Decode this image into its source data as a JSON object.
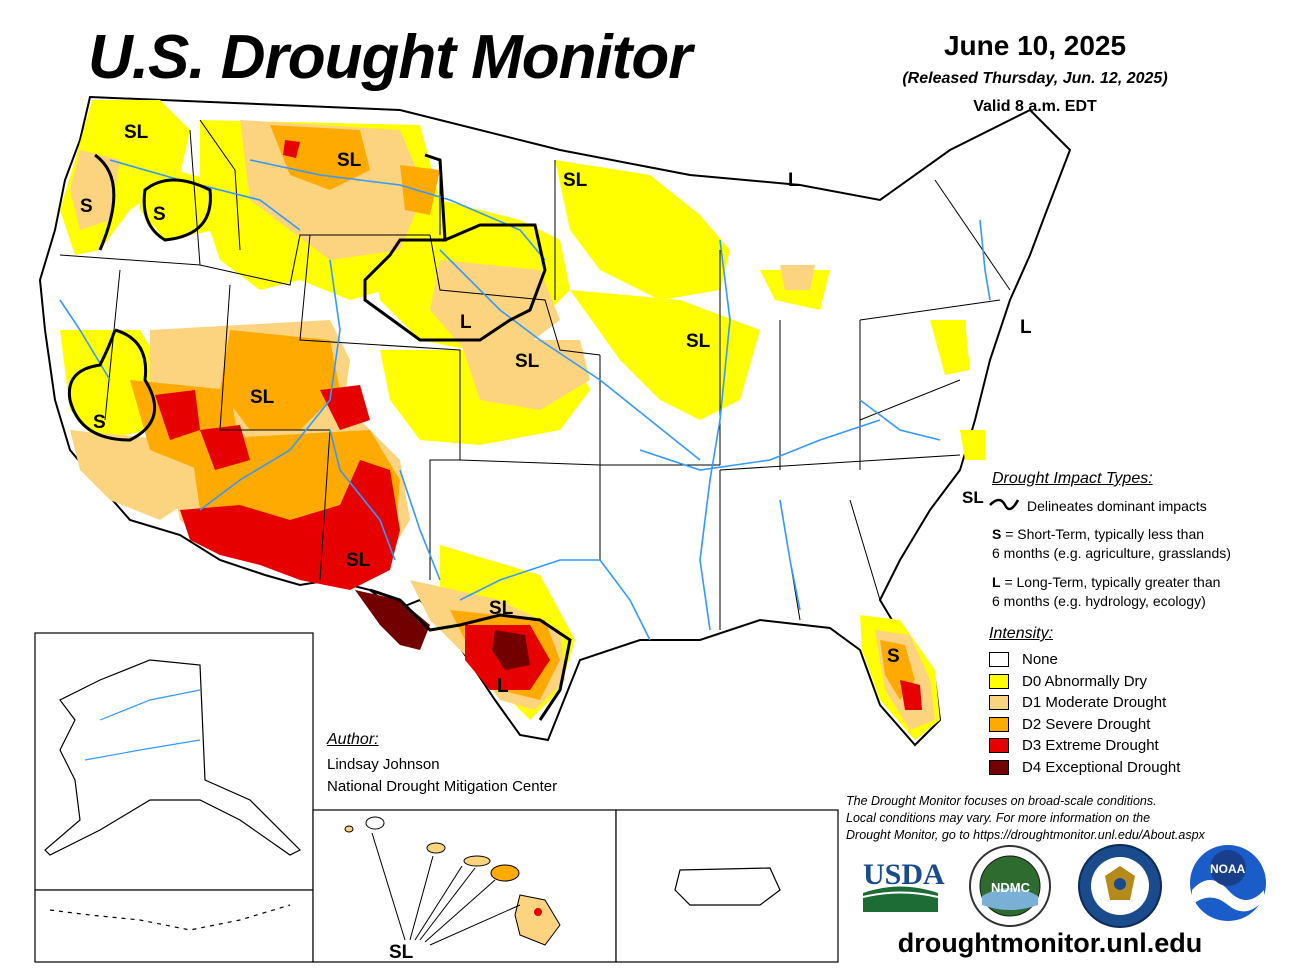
{
  "header": {
    "title": "U.S. Drought Monitor",
    "date": "June 10, 2025",
    "released": "(Released Thursday, Jun. 12, 2025)",
    "valid": "Valid 8 a.m. EDT"
  },
  "impact_types": {
    "heading": "Drought Impact Types:",
    "line_symbol": "SL",
    "delineates": "Delineates dominant impacts",
    "short_key": "S",
    "short_line1": " = Short-Term, typically less than",
    "short_line2": "6 months (e.g. agriculture, grasslands)",
    "long_key": "L",
    "long_line1": " = Long-Term, typically greater than",
    "long_line2": "6 months (e.g. hydrology, ecology)"
  },
  "intensity": {
    "heading": "Intensity:",
    "items": [
      {
        "label": "None",
        "color": "#ffffff"
      },
      {
        "label": "D0 Abnormally Dry",
        "color": "#ffff00"
      },
      {
        "label": "D1 Moderate Drought",
        "color": "#fcd37f"
      },
      {
        "label": "D2 Severe Drought",
        "color": "#ffaa00"
      },
      {
        "label": "D3 Extreme Drought",
        "color": "#e60000"
      },
      {
        "label": "D4 Exceptional Drought",
        "color": "#730000"
      }
    ]
  },
  "author": {
    "heading": "Author:",
    "name": "Lindsay Johnson",
    "org": "National Drought Mitigation Center"
  },
  "disclaimer": {
    "line1": "The Drought Monitor focuses on broad-scale conditions.",
    "line2": "Local conditions may vary. For more information on the",
    "line3": "Drought Monitor, go to https://droughtmonitor.unl.edu/About.aspx"
  },
  "map_labels": {
    "wa_sl": "SL",
    "or_s": "S",
    "id_s": "S",
    "mt_sl": "SL",
    "mn_sl": "SL",
    "mi_l": "L",
    "ne_l": "L",
    "ks_sl": "SL",
    "ia_sl": "SL",
    "nj_l": "L",
    "nv_sl": "SL",
    "ca_s": "S",
    "nm_sl": "SL",
    "tx_sl": "SL",
    "tx_l": "L",
    "fl_s": "S",
    "hi_sl": "SL"
  },
  "logos": {
    "usda": "USDA",
    "ndmc": "NDMC",
    "noaa": "NOAA"
  },
  "url": "droughtmonitor.unl.edu"
}
